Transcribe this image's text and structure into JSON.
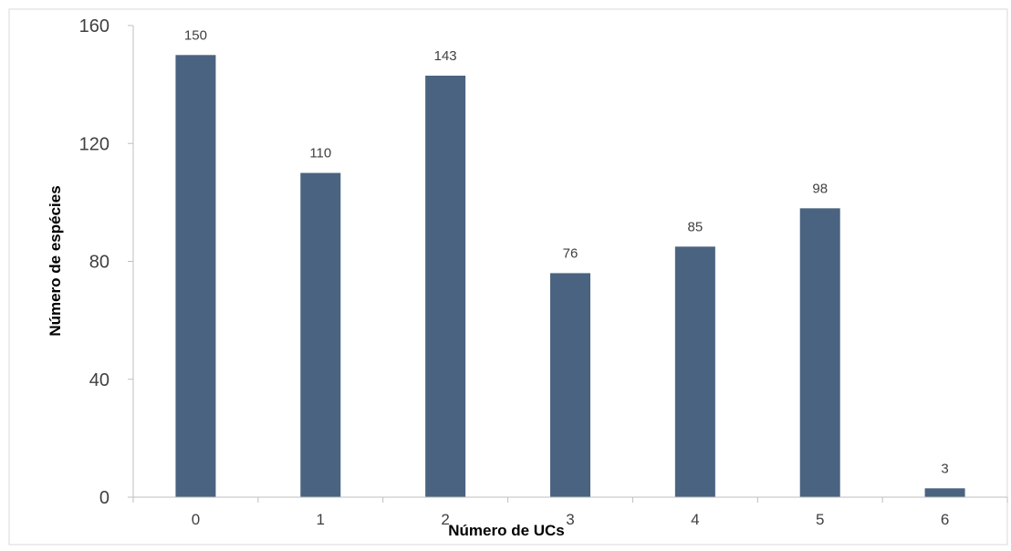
{
  "chart_data": {
    "type": "bar",
    "categories": [
      "0",
      "1",
      "2",
      "3",
      "4",
      "5",
      "6"
    ],
    "values": [
      150,
      110,
      143,
      76,
      85,
      98,
      3
    ],
    "data_labels": [
      "150",
      "110",
      "143",
      "76",
      "85",
      "98",
      "3"
    ],
    "title": "",
    "xlabel": "Número de UCs",
    "ylabel": "Número de espécies",
    "ylim": [
      0,
      160
    ],
    "yticks": [
      "0",
      "40",
      "80",
      "120",
      "160"
    ],
    "grid": false,
    "legend": "none",
    "colors": {
      "bar": "#4a6380",
      "axis": "#bfbfbf",
      "frame": "#d9d9d9"
    }
  }
}
